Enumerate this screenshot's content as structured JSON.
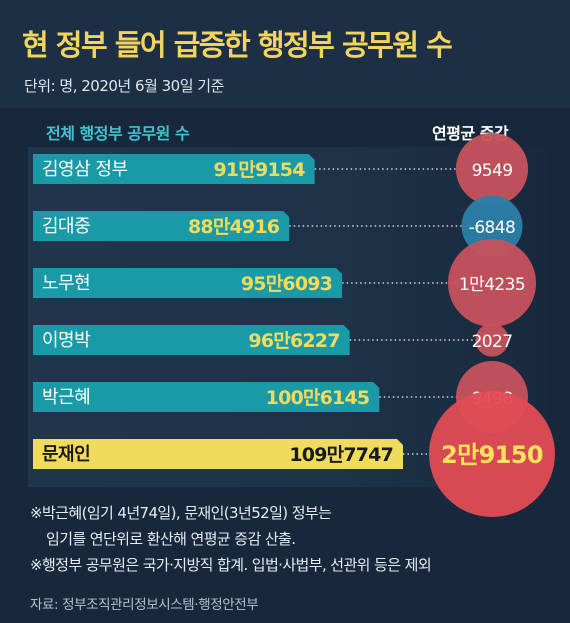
{
  "title": "현 정부 들어 급증한 행정부 공무원 수",
  "unit_note": "단위: 명, 2020년 6월 30일 기준",
  "left_header": "전체 행정부 공무원 수",
  "right_header": "연평균 증감",
  "colors": {
    "teal": "#1a9aa6",
    "highlight": "#f0db5c",
    "bubble": "#c6525c",
    "bubble_highlight": "#e24c55",
    "bubble_negative": "#2a7fa8"
  },
  "chart_data": {
    "type": "bar",
    "categories": [
      "김영삼 정부",
      "김대중",
      "노무현",
      "이명박",
      "박근혜",
      "문재인"
    ],
    "values": [
      919154,
      884916,
      956093,
      966227,
      1006145,
      1097747
    ],
    "value_labels": [
      "91만9154",
      "88만4916",
      "95만6093",
      "96만6227",
      "100만6145",
      "109만7747"
    ],
    "annual_change": [
      9549,
      -6848,
      14235,
      2027,
      9498,
      29150
    ],
    "annual_change_labels": [
      "9549",
      "-6848",
      "1만4235",
      "2027",
      "9498",
      "2만9150"
    ],
    "highlight_index": 5,
    "xlabel": "전체 행정부 공무원 수",
    "ylabel": "연평균 증감"
  },
  "notes": [
    "※박근혜(임기 4년74일), 문재인(3년52일) 정부는",
    "임기를 연단위로 환산해 연평균 증감 산출.",
    "※행정부 공무원은 국가·지방직 합계. 입법·사법부, 선관위 등은 제외"
  ],
  "source": "자료: 정부조직관리정보시스템·행정안전부"
}
